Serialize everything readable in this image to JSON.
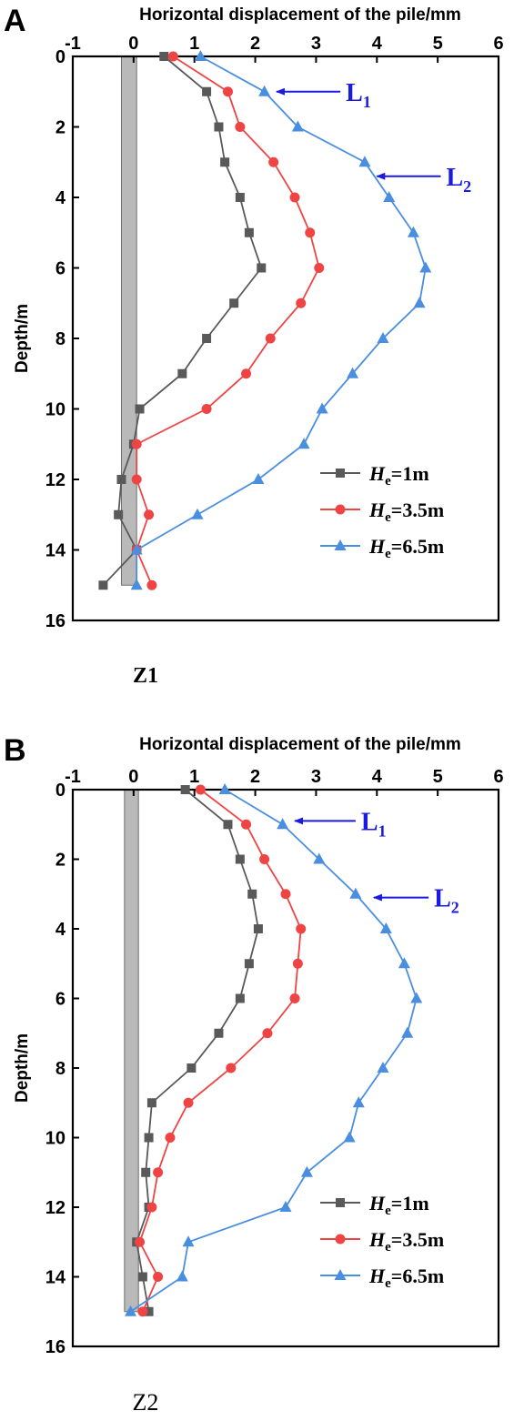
{
  "chart_data": [
    {
      "panel_label": "A",
      "caption": "Z1",
      "type": "line",
      "xlabel": "Horizontal displacement of the pile/mm",
      "ylabel": "Depth/m",
      "xlim": [
        -1,
        6
      ],
      "ylim": [
        0,
        16
      ],
      "y_inverted": true,
      "x_axis_position": "top",
      "xticks": [
        "-1",
        "0",
        "1",
        "2",
        "3",
        "4",
        "5",
        "6"
      ],
      "yticks": [
        "0",
        "2",
        "4",
        "6",
        "8",
        "10",
        "12",
        "14",
        "16"
      ],
      "pile_band": {
        "x0": -0.2,
        "x1": 0.05,
        "y0": 0,
        "y1": 15
      },
      "legend": {
        "placement": "lower-right"
      },
      "series": [
        {
          "name_main": "H",
          "name_sub": "e",
          "name_tail": "=1m",
          "color": "#595959",
          "marker": "square",
          "x": [
            0.5,
            1.2,
            1.4,
            1.5,
            1.75,
            1.9,
            2.1,
            1.65,
            1.2,
            0.8,
            0.1,
            0.0,
            -0.2,
            -0.25,
            0.05,
            -0.5
          ],
          "y": [
            0,
            1,
            2,
            3,
            4,
            5,
            6,
            7,
            8,
            9,
            10,
            11,
            12,
            13,
            14,
            15
          ]
        },
        {
          "name_main": "H",
          "name_sub": "e",
          "name_tail": "=3.5m",
          "color": "#ee4444",
          "marker": "circle",
          "x": [
            0.65,
            1.55,
            1.75,
            2.3,
            2.65,
            2.9,
            3.05,
            2.75,
            2.25,
            1.85,
            1.2,
            0.05,
            0.05,
            0.25,
            0.05,
            0.3
          ],
          "y": [
            0,
            1,
            2,
            3,
            4,
            5,
            6,
            7,
            8,
            9,
            10,
            11,
            12,
            13,
            14,
            15
          ]
        },
        {
          "name_main": "H",
          "name_sub": "e",
          "name_tail": "=6.5m",
          "color": "#4a8ee0",
          "marker": "triangle",
          "x": [
            1.1,
            2.15,
            2.7,
            3.8,
            4.2,
            4.6,
            4.8,
            4.7,
            4.1,
            3.6,
            3.1,
            2.8,
            2.05,
            1.05,
            0.05,
            0.05
          ],
          "y": [
            0,
            1,
            2,
            3,
            4,
            5,
            6,
            7,
            8,
            9,
            10,
            11,
            12,
            13,
            14,
            15
          ]
        }
      ],
      "annotations": [
        {
          "main": "L",
          "sub": "1",
          "arrow_tip": [
            2.35,
            1.0
          ],
          "arrow_tail": [
            3.4,
            1.0
          ]
        },
        {
          "main": "L",
          "sub": "2",
          "arrow_tip": [
            4.0,
            3.4
          ],
          "arrow_tail": [
            5.05,
            3.4
          ]
        }
      ]
    },
    {
      "panel_label": "B",
      "caption": "Z2",
      "type": "line",
      "xlabel": "Horizontal displacement of the pile/mm",
      "ylabel": "Depth/m",
      "xlim": [
        -1,
        6
      ],
      "ylim": [
        0,
        16
      ],
      "y_inverted": true,
      "x_axis_position": "top",
      "xticks": [
        "-1",
        "0",
        "1",
        "2",
        "3",
        "4",
        "5",
        "6"
      ],
      "yticks": [
        "0",
        "2",
        "4",
        "6",
        "8",
        "10",
        "12",
        "14",
        "16"
      ],
      "pile_band": {
        "x0": -0.15,
        "x1": 0.08,
        "y0": 0,
        "y1": 15
      },
      "legend": {
        "placement": "lower-right"
      },
      "series": [
        {
          "name_main": "H",
          "name_sub": "e",
          "name_tail": "=1m",
          "color": "#595959",
          "marker": "square",
          "x": [
            0.85,
            1.55,
            1.75,
            1.95,
            2.05,
            1.9,
            1.75,
            1.4,
            0.95,
            0.3,
            0.25,
            0.2,
            0.25,
            0.05,
            0.15,
            0.25
          ],
          "y": [
            0,
            1,
            2,
            3,
            4,
            5,
            6,
            7,
            8,
            9,
            10,
            11,
            12,
            13,
            14,
            15
          ]
        },
        {
          "name_main": "H",
          "name_sub": "e",
          "name_tail": "=3.5m",
          "color": "#ee4444",
          "marker": "circle",
          "x": [
            1.1,
            1.85,
            2.15,
            2.5,
            2.75,
            2.7,
            2.65,
            2.2,
            1.6,
            0.9,
            0.6,
            0.4,
            0.3,
            0.1,
            0.4,
            0.15
          ],
          "y": [
            0,
            1,
            2,
            3,
            4,
            5,
            6,
            7,
            8,
            9,
            10,
            11,
            12,
            13,
            14,
            15
          ]
        },
        {
          "name_main": "H",
          "name_sub": "e",
          "name_tail": "=6.5m",
          "color": "#4a8ee0",
          "marker": "triangle",
          "x": [
            1.5,
            2.45,
            3.05,
            3.65,
            4.15,
            4.45,
            4.65,
            4.5,
            4.1,
            3.7,
            3.55,
            2.85,
            2.5,
            0.9,
            0.8,
            -0.05
          ],
          "y": [
            0,
            1,
            2,
            3,
            4,
            5,
            6,
            7,
            8,
            9,
            10,
            11,
            12,
            13,
            14,
            15
          ]
        }
      ],
      "annotations": [
        {
          "main": "L",
          "sub": "1",
          "arrow_tip": [
            2.65,
            0.9
          ],
          "arrow_tail": [
            3.65,
            0.9
          ]
        },
        {
          "main": "L",
          "sub": "2",
          "arrow_tip": [
            3.95,
            3.1
          ],
          "arrow_tail": [
            4.85,
            3.1
          ]
        }
      ]
    }
  ]
}
